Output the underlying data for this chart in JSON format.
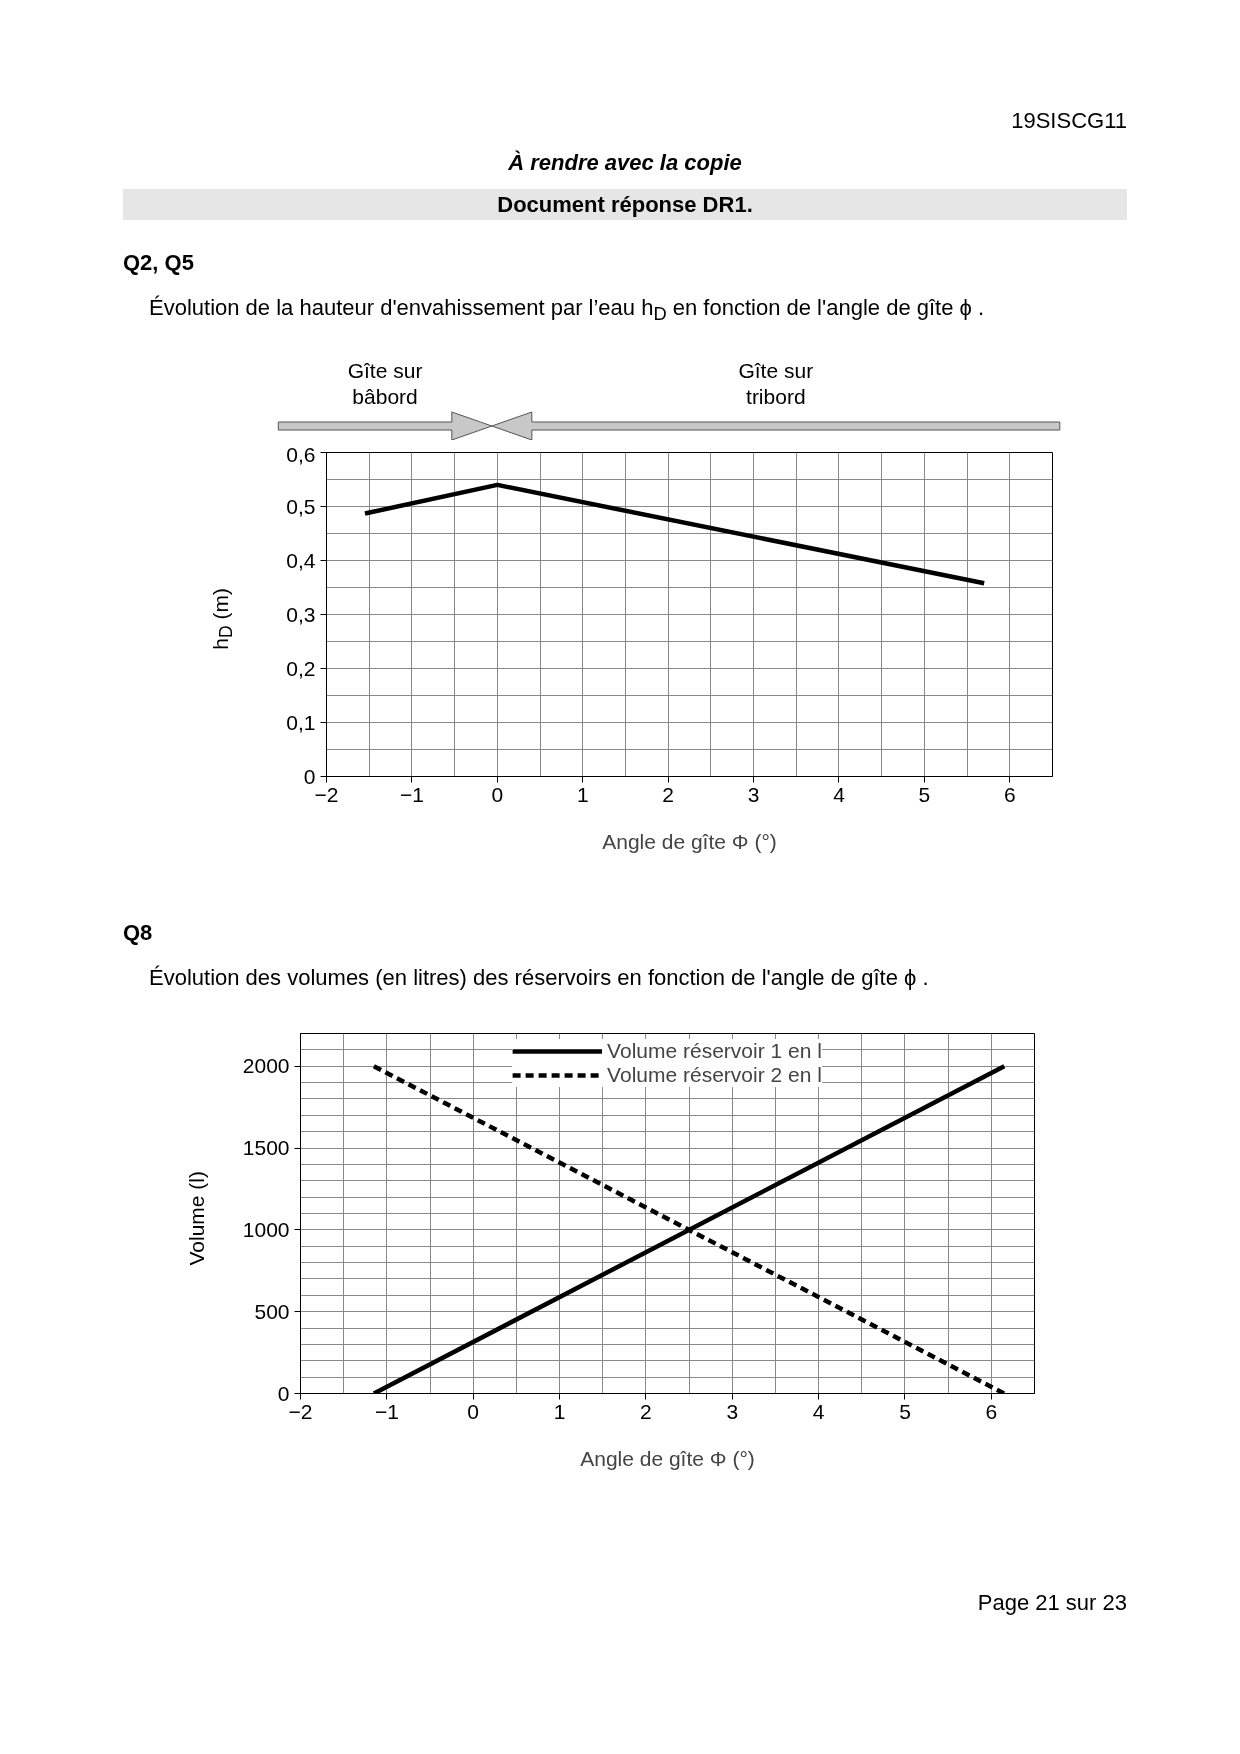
{
  "chart_data": [
    {
      "type": "line",
      "title": "Q2, Q5",
      "subtitle": "Évolution de la hauteur d'envahissement par l’eau h$_{D}$ en fonction de l'angle de gîte  ϕ .",
      "xlabel": "Angle de gîte Φ (°)",
      "ylabel": "h$_{D}$  (m)",
      "annotations": [
        "19SISCG11",
        "À rendre avec la copie",
        "Document réponse DR1.",
        "Gîte sur\nbâbord",
        "Gîte sur\ntribord"
      ],
      "xlim": [
        -2,
        6.5
      ],
      "xticks": [
        -2,
        -1,
        0,
        1,
        2,
        3,
        4,
        5,
        6
      ],
      "ylim": [
        0,
        0.6
      ],
      "yticks": [
        0,
        {
          "value": 0.1,
          "label": "0,1"
        },
        {
          "value": 0.2,
          "label": "0,2"
        },
        {
          "value": 0.3,
          "label": "0,3"
        },
        {
          "value": 0.4,
          "label": "0,4"
        },
        {
          "value": 0.5,
          "label": "0,5"
        },
        {
          "value": 0.6,
          "label": "0,6"
        }
      ],
      "grid": true,
      "legend": false,
      "series": [
        {
          "color": "#000000",
          "x": [
            -1.55,
            0,
            5.7
          ],
          "values": [
            0.487,
            0.54,
            0.358
          ],
          "line_style": "solid"
        }
      ]
    },
    {
      "type": "line",
      "title": "Q8",
      "subtitle": "Évolution des volumes (en litres) des réservoirs en fonction de l'angle de gîte  ϕ .",
      "xlabel": "Angle de gîte Φ (°)",
      "ylabel": "Volume (l)",
      "annotations": [
        "Page 21 sur 23"
      ],
      "xlim": [
        -2,
        6.5
      ],
      "xticks": [
        -2,
        -1,
        0,
        1,
        2,
        3,
        4,
        5,
        6
      ],
      "ylim": [
        0,
        2200
      ],
      "yticks": [
        0,
        500,
        1000,
        1500,
        2000
      ],
      "grid": true,
      "legend": "top",
      "series": [
        {
          "name": "Volume réservoir 1 en l",
          "color": "#000000",
          "x": [
            -1.15,
            6.15
          ],
          "values": [
            0,
            2000
          ],
          "line_style": "solid"
        },
        {
          "name": "Volume réservoir 2 en l",
          "color": "#000000",
          "x": [
            -1.15,
            6.15
          ],
          "values": [
            2000,
            0
          ],
          "line_style": "dashed"
        }
      ]
    }
  ]
}
